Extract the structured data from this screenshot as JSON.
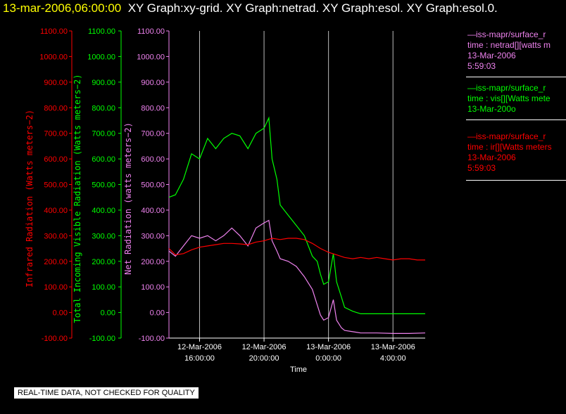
{
  "header": {
    "timestamp": "13-mar-2006,06:00:00",
    "graphs": "XY Graph:xy-grid.  XY Graph:netrad.  XY Graph:esol.  XY Graph:esol.0."
  },
  "axes": {
    "ir": {
      "title": "Infrared Radiation (Watts meters−2)",
      "ticks": [
        "-100.00",
        "0.00",
        "100.00",
        "200.00",
        "300.00",
        "400.00",
        "500.00",
        "600.00",
        "700.00",
        "800.00",
        "900.00",
        "1000.00",
        "1100.00"
      ],
      "color": "#ff0000"
    },
    "vis": {
      "title": "Total Incoming Visible Radiation (Watts meters−2)",
      "ticks": [
        "-100.00",
        "0.00",
        "100.00",
        "200.00",
        "300.00",
        "400.00",
        "500.00",
        "600.00",
        "700.00",
        "800.00",
        "900.00",
        "1000.00",
        "1100.00"
      ],
      "color": "#00ff00"
    },
    "net": {
      "title": "Net Radiation (watts meters−2)",
      "ticks": [
        "-100.00",
        "0.00",
        "100.00",
        "200.00",
        "300.00",
        "400.00",
        "500.00",
        "600.00",
        "700.00",
        "800.00",
        "900.00",
        "1000.00",
        "1100.00"
      ],
      "color": "#ee82ee"
    },
    "x": {
      "title": "Time",
      "ticks": [
        {
          "date": "12-Mar-2006",
          "time": "16:00:00",
          "hours": 16
        },
        {
          "date": "12-Mar-2006",
          "time": "20:00:00",
          "hours": 20
        },
        {
          "date": "13-Mar-2006",
          "time": "0:00:00",
          "hours": 24
        },
        {
          "date": "13-Mar-2006",
          "time": "4:00:00",
          "hours": 28
        }
      ]
    }
  },
  "legend": [
    {
      "lines": [
        "—iss-mapr/surface_r",
        "time : netrad[][watts m",
        "13-Mar-2006",
        "5:59:03"
      ],
      "color": "#ee82ee"
    },
    {
      "lines": [
        "—iss-mapr/surface_r",
        "time : vis[][Watts mete",
        "13-Mar-200o"
      ],
      "color": "#00ff00"
    },
    {
      "lines": [
        "—iss-mapr/surface_r",
        "time : ir[][Watts meters",
        "13-Mar-2006",
        "5:59:03"
      ],
      "color": "#ff0000"
    }
  ],
  "disclaimer": "REAL-TIME DATA, NOT CHECKED FOR QUALITY",
  "chart_data": {
    "type": "line",
    "x_unit": "hours since 12-Mar-2006 00:00",
    "xlim": [
      14.1,
      30.0
    ],
    "ylim": [
      -100,
      1100
    ],
    "grid": "vertical only",
    "legend_position": "right",
    "series": [
      {
        "name": "vis",
        "color": "#00ff00",
        "x": [
          14.1,
          14.5,
          15.0,
          15.5,
          16.0,
          16.5,
          17.0,
          17.5,
          18.0,
          18.5,
          19.0,
          19.5,
          20.0,
          20.3,
          20.5,
          20.8,
          21.0,
          21.5,
          22.0,
          22.5,
          23.0,
          23.3,
          23.5,
          23.7,
          24.0,
          24.3,
          24.5,
          24.8,
          25.0,
          25.5,
          26.0,
          27.0,
          28.0,
          29.0,
          30.0
        ],
        "y": [
          450,
          460,
          520,
          620,
          600,
          680,
          640,
          680,
          700,
          690,
          640,
          700,
          720,
          760,
          600,
          520,
          420,
          380,
          340,
          300,
          220,
          200,
          150,
          110,
          120,
          230,
          120,
          60,
          20,
          5,
          -5,
          -5,
          -5,
          -5,
          -5
        ]
      },
      {
        "name": "netrad",
        "color": "#ee82ee",
        "x": [
          14.1,
          14.5,
          15.0,
          15.5,
          16.0,
          16.5,
          17.0,
          17.5,
          18.0,
          18.5,
          19.0,
          19.5,
          20.0,
          20.3,
          20.5,
          20.8,
          21.0,
          21.5,
          22.0,
          22.5,
          23.0,
          23.3,
          23.5,
          23.7,
          24.0,
          24.3,
          24.5,
          24.8,
          25.0,
          25.5,
          26.0,
          27.0,
          28.0,
          29.0,
          30.0
        ],
        "y": [
          240,
          220,
          260,
          300,
          290,
          300,
          280,
          300,
          330,
          300,
          260,
          330,
          350,
          360,
          280,
          240,
          210,
          200,
          180,
          140,
          90,
          30,
          -10,
          -30,
          -20,
          50,
          -30,
          -60,
          -70,
          -75,
          -80,
          -80,
          -82,
          -82,
          -80
        ]
      },
      {
        "name": "ir",
        "color": "#ff0000",
        "x": [
          14.1,
          14.5,
          15.0,
          15.5,
          16.0,
          16.5,
          17.0,
          17.5,
          18.0,
          18.5,
          19.0,
          19.5,
          20.0,
          20.5,
          21.0,
          21.5,
          22.0,
          22.5,
          23.0,
          23.5,
          24.0,
          24.5,
          25.0,
          25.5,
          26.0,
          26.5,
          27.0,
          27.5,
          28.0,
          28.5,
          29.0,
          29.5,
          30.0
        ],
        "y": [
          250,
          225,
          230,
          245,
          255,
          260,
          265,
          270,
          270,
          268,
          265,
          275,
          280,
          290,
          285,
          290,
          290,
          285,
          270,
          250,
          235,
          225,
          215,
          210,
          215,
          210,
          215,
          210,
          205,
          210,
          210,
          205,
          205
        ]
      }
    ]
  }
}
